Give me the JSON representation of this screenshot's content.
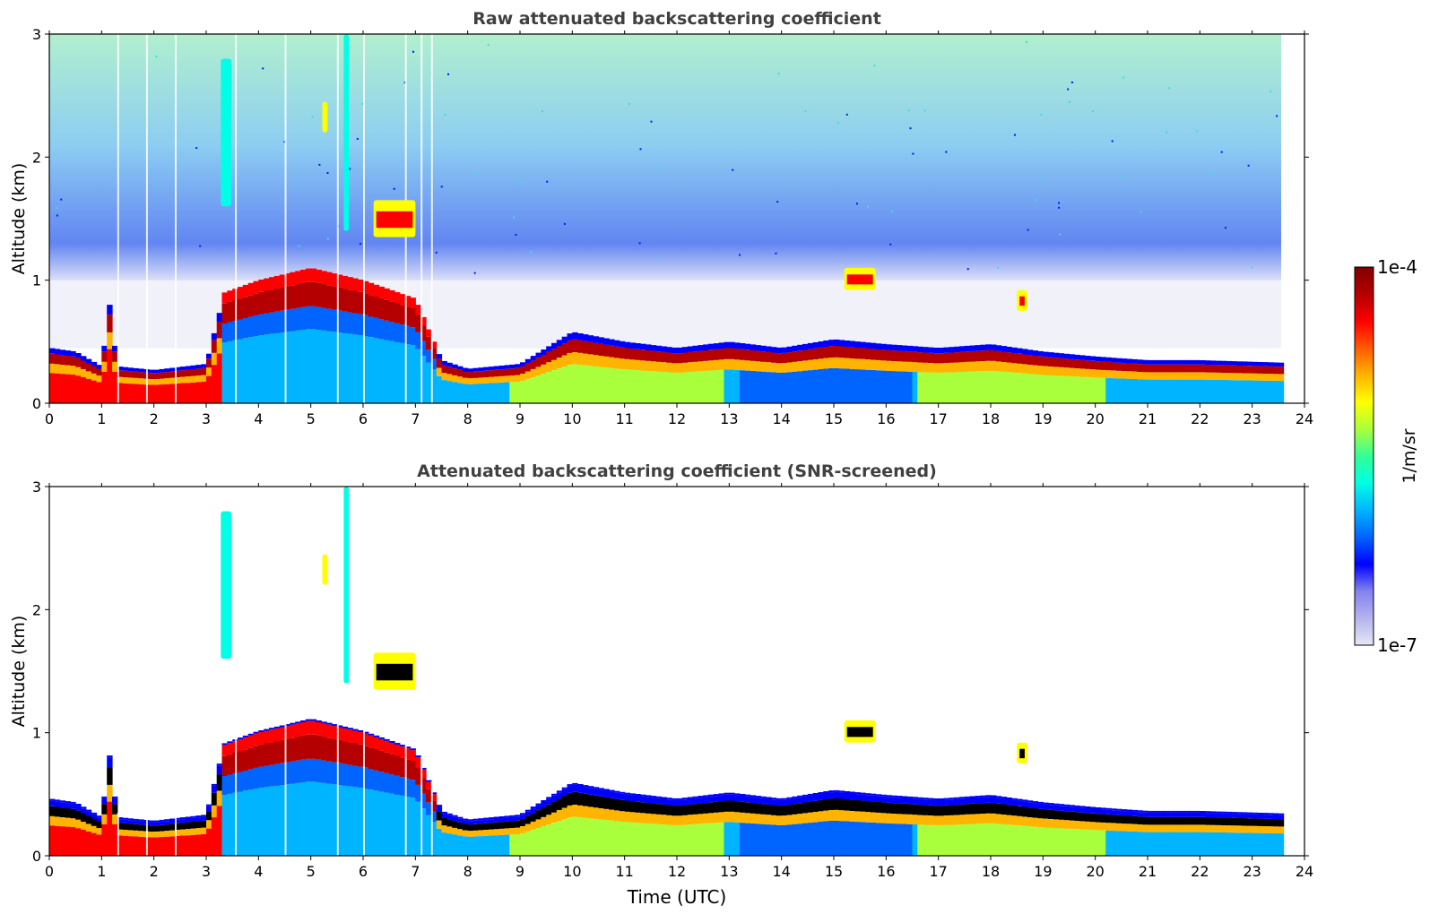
{
  "chart_data": {
    "type": "heatmap",
    "panels": [
      {
        "id": "raw",
        "title": "Raw attenuated backscattering coefficient",
        "ylabel": "Altitude (km)",
        "xlabel": "",
        "xlim": [
          0,
          24
        ],
        "ylim": [
          0,
          3
        ],
        "xticks": [
          "0",
          "1",
          "2",
          "3",
          "4",
          "5",
          "6",
          "7",
          "8",
          "9",
          "10",
          "11",
          "12",
          "13",
          "14",
          "15",
          "16",
          "17",
          "18",
          "19",
          "20",
          "21",
          "22",
          "23",
          "24"
        ],
        "yticks": [
          "0",
          "1",
          "2",
          "3"
        ],
        "screened": false
      },
      {
        "id": "snr",
        "title": "Attenuated backscattering coefficient (SNR-screened)",
        "ylabel": "Altitude (km)",
        "xlabel": "Time (UTC)",
        "xlim": [
          0,
          24
        ],
        "ylim": [
          0,
          3
        ],
        "xticks": [
          "0",
          "1",
          "2",
          "3",
          "4",
          "5",
          "6",
          "7",
          "8",
          "9",
          "10",
          "11",
          "12",
          "13",
          "14",
          "15",
          "16",
          "17",
          "18",
          "19",
          "20",
          "21",
          "22",
          "23",
          "24"
        ],
        "yticks": [
          "0",
          "1",
          "2",
          "3"
        ],
        "screened": true
      }
    ],
    "data_end_hour": 23.55,
    "boundary_layer_top_km": [
      {
        "t": 0.0,
        "h": 0.45
      },
      {
        "t": 0.5,
        "h": 0.42
      },
      {
        "t": 1.0,
        "h": 0.3
      },
      {
        "t": 1.15,
        "h": 0.8
      },
      {
        "t": 1.3,
        "h": 0.3
      },
      {
        "t": 2.0,
        "h": 0.27
      },
      {
        "t": 3.0,
        "h": 0.32
      },
      {
        "t": 3.35,
        "h": 0.9
      },
      {
        "t": 4.0,
        "h": 1.0
      },
      {
        "t": 5.0,
        "h": 1.1
      },
      {
        "t": 6.0,
        "h": 1.0
      },
      {
        "t": 7.0,
        "h": 0.85
      },
      {
        "t": 7.5,
        "h": 0.35
      },
      {
        "t": 8.0,
        "h": 0.28
      },
      {
        "t": 9.0,
        "h": 0.32
      },
      {
        "t": 10.0,
        "h": 0.58
      },
      {
        "t": 11.0,
        "h": 0.5
      },
      {
        "t": 12.0,
        "h": 0.45
      },
      {
        "t": 13.0,
        "h": 0.5
      },
      {
        "t": 14.0,
        "h": 0.45
      },
      {
        "t": 15.0,
        "h": 0.52
      },
      {
        "t": 16.0,
        "h": 0.48
      },
      {
        "t": 17.0,
        "h": 0.45
      },
      {
        "t": 18.0,
        "h": 0.48
      },
      {
        "t": 19.0,
        "h": 0.42
      },
      {
        "t": 20.0,
        "h": 0.38
      },
      {
        "t": 21.0,
        "h": 0.35
      },
      {
        "t": 22.0,
        "h": 0.35
      },
      {
        "t": 23.55,
        "h": 0.33
      }
    ],
    "cloud_features": [
      {
        "name": "cloud-layer-1p5km",
        "t0": 6.2,
        "t1": 7.0,
        "h0": 1.35,
        "h1": 1.65
      },
      {
        "name": "cloud-layer-1km",
        "t0": 15.2,
        "t1": 15.8,
        "h0": 0.92,
        "h1": 1.1
      },
      {
        "name": "virga-3p4h",
        "t0": 3.28,
        "t1": 3.48,
        "h0": 1.6,
        "h1": 2.8
      },
      {
        "name": "virga-5p7h",
        "t0": 5.63,
        "t1": 5.73,
        "h0": 1.4,
        "h1": 3.0
      },
      {
        "name": "cloud-speck-5p3h",
        "t0": 5.22,
        "t1": 5.32,
        "h0": 2.2,
        "h1": 2.45
      },
      {
        "name": "cloud-speck-18p6h",
        "t0": 18.5,
        "t1": 18.7,
        "h0": 0.75,
        "h1": 0.92
      }
    ],
    "colorbar": {
      "label": "1/m/sr",
      "max_label": "1e-4",
      "min_label": "1e-7",
      "scale": "log",
      "vmin": 1e-07,
      "vmax": 0.0001,
      "colors": [
        "#e6e6f5",
        "#b4b4ee",
        "#8282ee",
        "#0000ff",
        "#0064ff",
        "#00b4ff",
        "#00ffe6",
        "#32ff96",
        "#aaff3c",
        "#ffff00",
        "#ffb400",
        "#ff5a00",
        "#ff0000",
        "#b40000",
        "#800000"
      ]
    }
  }
}
